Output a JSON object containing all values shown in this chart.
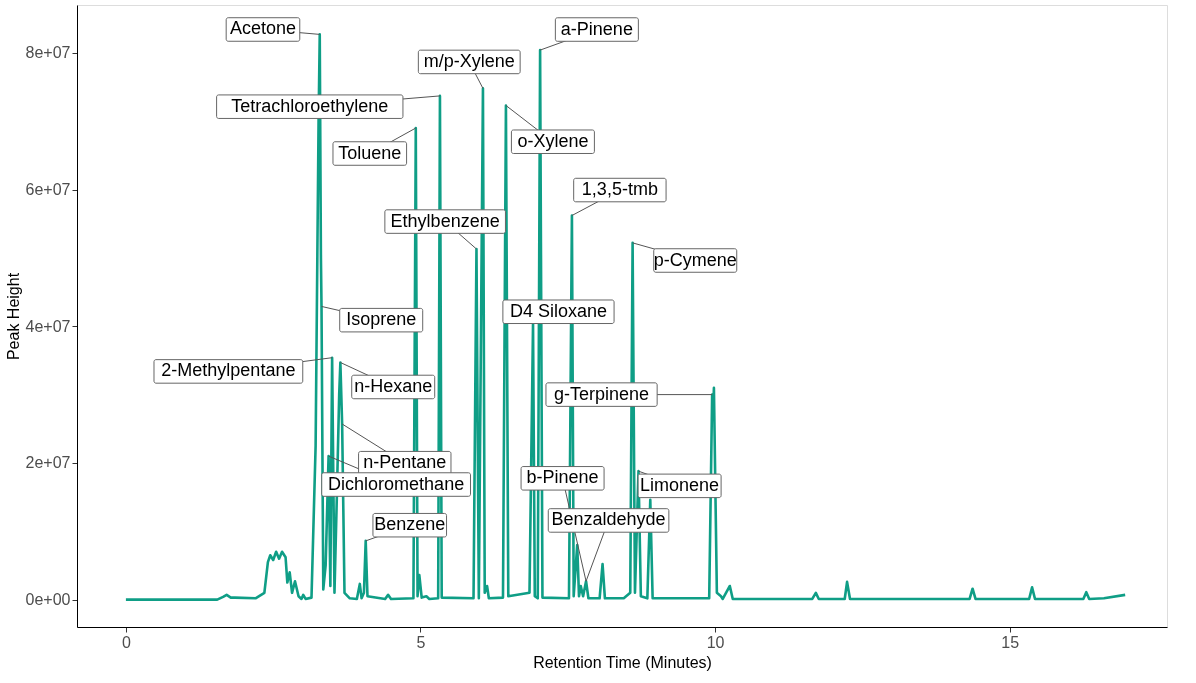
{
  "chart_data": {
    "type": "line",
    "xlabel": "Retention Time (Minutes)",
    "ylabel": "Peak Height",
    "xlim": [
      -0.83,
      17.67
    ],
    "ylim": [
      -4000000,
      87000000
    ],
    "xticks": [
      0,
      5,
      10,
      15
    ],
    "yticks": [
      {
        "value": 0,
        "label": "0e+00"
      },
      {
        "value": 20000000,
        "label": "2e+07"
      },
      {
        "value": 40000000,
        "label": "4e+07"
      },
      {
        "value": 60000000,
        "label": "6e+07"
      },
      {
        "value": 80000000,
        "label": "8e+07"
      }
    ],
    "grid": false,
    "marker": "none",
    "line_style": "solid",
    "series": [
      {
        "color": "#0f9e86",
        "x": [
          0,
          1.55,
          1.65,
          1.71,
          1.78,
          1.85,
          2.2,
          2.35,
          2.41,
          2.45,
          2.5,
          2.55,
          2.6,
          2.65,
          2.71,
          2.74,
          2.78,
          2.82,
          2.87,
          2.93,
          2.98,
          3.01,
          3.05,
          3.15,
          3.22,
          3.27,
          3.29,
          3.31,
          3.32,
          3.35,
          3.39,
          3.44,
          3.47,
          3.5,
          3.54,
          3.58,
          3.62,
          3.64,
          3.67,
          3.71,
          3.8,
          3.92,
          3.97,
          4.0,
          4.04,
          4.07,
          4.1,
          4.4,
          4.45,
          4.5,
          4.88,
          4.92,
          4.95,
          4.98,
          5.02,
          5.1,
          5.15,
          5.3,
          5.33,
          5.36,
          5.9,
          5.95,
          5.99,
          6.06,
          6.09,
          6.13,
          6.16,
          6.4,
          6.45,
          6.49,
          6.85,
          6.91,
          6.94,
          6.99,
          7.03,
          7.07,
          7.52,
          7.57,
          7.6,
          7.66,
          7.69,
          7.72,
          7.76,
          7.81,
          7.85,
          8.04,
          8.09,
          8.13,
          8.45,
          8.56,
          8.6,
          8.64,
          8.7,
          8.74,
          8.85,
          8.9,
          8.94,
          9.9,
          9.95,
          9.97,
          9.98,
          10.03,
          10.1,
          10.13,
          10.25,
          10.3,
          11.65,
          11.71,
          11.76,
          12.2,
          12.24,
          12.29,
          14.32,
          14.37,
          14.42,
          15.33,
          15.38,
          15.43,
          16.25,
          16.3,
          16.35,
          16.6,
          16.96
        ],
        "values": [
          0,
          0,
          400000,
          700000,
          300000,
          300000,
          200000,
          1000000,
          5500000,
          6500000,
          5800000,
          7000000,
          6000000,
          7000000,
          6200000,
          2500000,
          4000000,
          1000000,
          2700000,
          500000,
          100000,
          700000,
          100000,
          300000,
          22500000,
          70000000,
          82700000,
          50000000,
          42900000,
          1500000,
          5000000,
          21000000,
          2000000,
          35400000,
          1000000,
          15000000,
          30000000,
          34700000,
          25700000,
          1000000,
          200000,
          100000,
          2300000,
          200000,
          1000000,
          8600000,
          500000,
          100000,
          700000,
          100000,
          200000,
          69000000,
          500000,
          3600000,
          300000,
          500000,
          100000,
          200000,
          73700000,
          300000,
          200000,
          51300000,
          200000,
          74800000,
          1000000,
          2000000,
          200000,
          300000,
          72300000,
          500000,
          1000000,
          40400000,
          500000,
          200000,
          80400000,
          300000,
          200000,
          56200000,
          500000,
          8000000,
          500000,
          2000000,
          500000,
          2700000,
          200000,
          200000,
          5200000,
          200000,
          200000,
          1000000,
          52200000,
          1000000,
          18800000,
          500000,
          200000,
          14600000,
          200000,
          200000,
          30000000,
          28000000,
          31000000,
          1000000,
          500000,
          100000,
          2000000,
          100000,
          100000,
          1000000,
          100000,
          100000,
          2600000,
          100000,
          100000,
          1600000,
          100000,
          100000,
          1800000,
          100000,
          100000,
          1100000,
          100000,
          200000,
          700000
        ]
      }
    ],
    "annotations": [
      {
        "text": "Acetone",
        "x": 3.29,
        "y": 82700000
      },
      {
        "text": "Tetrachloroethylene",
        "x": 5.33,
        "y": 73700000
      },
      {
        "text": "Toluene",
        "x": 4.92,
        "y": 69000000
      },
      {
        "text": "Ethylbenzene",
        "x": 5.95,
        "y": 51300000
      },
      {
        "text": "Isoprene",
        "x": 3.32,
        "y": 42900000
      },
      {
        "text": "2-Methylpentane",
        "x": 3.5,
        "y": 35400000
      },
      {
        "text": "n-Hexane",
        "x": 3.64,
        "y": 34700000
      },
      {
        "text": "n-Pentane",
        "x": 3.67,
        "y": 25700000
      },
      {
        "text": "Dichloromethane",
        "x": 3.44,
        "y": 21000000
      },
      {
        "text": "Benzene",
        "x": 4.07,
        "y": 8600000
      },
      {
        "text": "m/p-Xylene",
        "x": 6.06,
        "y": 74800000
      },
      {
        "text": "o-Xylene",
        "x": 6.45,
        "y": 72300000
      },
      {
        "text": "a-Pinene",
        "x": 7.03,
        "y": 80400000
      },
      {
        "text": "D4 Siloxane",
        "x": 6.91,
        "y": 40400000
      },
      {
        "text": "1,3,5-tmb",
        "x": 7.57,
        "y": 56200000
      },
      {
        "text": "p-Cymene",
        "x": 8.6,
        "y": 52200000
      },
      {
        "text": "g-Terpinene",
        "x": 9.95,
        "y": 30000000
      },
      {
        "text": "Limonene",
        "x": 8.7,
        "y": 18800000
      },
      {
        "text": "b-Pinene",
        "x": 7.81,
        "y": 2700000
      },
      {
        "text": "Benzaldehyde",
        "x": 7.81,
        "y": 2700000
      }
    ]
  }
}
